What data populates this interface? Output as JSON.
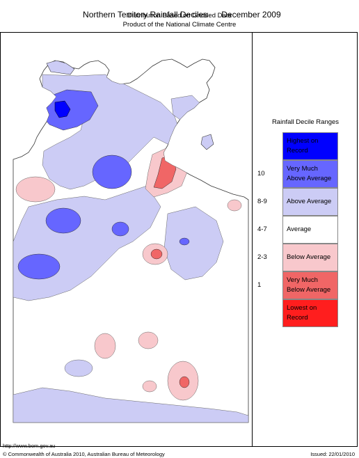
{
  "header": {
    "title_left": "Northern Territory Rainfall Deciles",
    "title_right": "December 2009",
    "subtitle_1": "Distribution Based on Gridded Data",
    "subtitle_2": "Product of the National Climate Centre"
  },
  "legend": {
    "title": "Rainfall Decile Ranges",
    "items": [
      {
        "label": "Highest on Record",
        "color": "#0000ff",
        "range": ""
      },
      {
        "label": "Very Much Above Average",
        "color": "#6666ff",
        "range": "10"
      },
      {
        "label": "Above Average",
        "color": "#ccccf5",
        "range": "8-9"
      },
      {
        "label": "Average",
        "color": "#ffffff",
        "range": "4-7"
      },
      {
        "label": "Below Average",
        "color": "#f8c8cc",
        "range": "2-3"
      },
      {
        "label": "Very Much Below Average",
        "color": "#f06666",
        "range": "1"
      },
      {
        "label": "Lowest on Record",
        "color": "#ff1e1e",
        "range": ""
      }
    ]
  },
  "footer": {
    "url": "http://www.bom.gov.au",
    "copyright": "© Commonwealth of Australia 2010, Australian Bureau of Meteorology",
    "issued": "Issued: 22/01/2010"
  }
}
